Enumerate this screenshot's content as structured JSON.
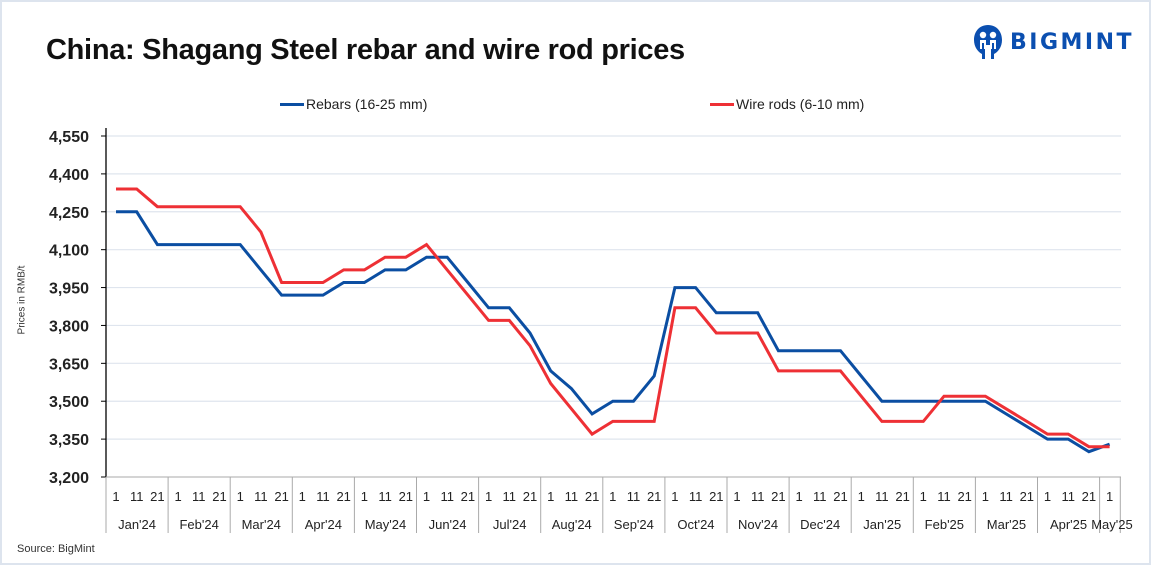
{
  "title": "China: Shagang Steel rebar and wire rod prices",
  "logo": {
    "text": "BIGMINT",
    "icon": "bigmint-logo-icon",
    "color": "#0b4fb0"
  },
  "source": "Source: BigMint",
  "chart_data": {
    "type": "line",
    "title": "China: Shagang Steel rebar and wire rod prices",
    "xlabel": "",
    "ylabel": "Prices in RMB/t",
    "ylim": [
      3200,
      4550
    ],
    "yticks": [
      3200,
      3350,
      3500,
      3650,
      3800,
      3950,
      4100,
      4250,
      4400,
      4550
    ],
    "ytick_labels": [
      "3,200",
      "3,350",
      "3,500",
      "3,650",
      "3,800",
      "3,950",
      "4,100",
      "4,250",
      "4,400",
      "4,550"
    ],
    "grid": true,
    "legend_position": "top",
    "x_day_labels": [
      "1",
      "11",
      "21",
      "1",
      "11",
      "21",
      "1",
      "11",
      "21",
      "1",
      "11",
      "21",
      "1",
      "11",
      "21",
      "1",
      "11",
      "21",
      "1",
      "11",
      "21",
      "1",
      "11",
      "21",
      "1",
      "11",
      "21",
      "1",
      "11",
      "21",
      "1",
      "11",
      "21",
      "1",
      "11",
      "21",
      "1",
      "11",
      "21",
      "1",
      "11",
      "21",
      "1",
      "11",
      "21",
      "1",
      "11",
      "21",
      "1"
    ],
    "x_month_groups": [
      {
        "label": "Jan'24",
        "count": 3
      },
      {
        "label": "Feb'24",
        "count": 3
      },
      {
        "label": "Mar'24",
        "count": 3
      },
      {
        "label": "Apr'24",
        "count": 3
      },
      {
        "label": "May'24",
        "count": 3
      },
      {
        "label": "Jun'24",
        "count": 3
      },
      {
        "label": "Jul'24",
        "count": 3
      },
      {
        "label": "Aug'24",
        "count": 3
      },
      {
        "label": "Sep'24",
        "count": 3
      },
      {
        "label": "Oct'24",
        "count": 3
      },
      {
        "label": "Nov'24",
        "count": 3
      },
      {
        "label": "Dec'24",
        "count": 3
      },
      {
        "label": "Jan'25",
        "count": 3
      },
      {
        "label": "Feb'25",
        "count": 3
      },
      {
        "label": "Mar'25",
        "count": 3
      },
      {
        "label": "Apr'25",
        "count": 3
      },
      {
        "label": "May'25",
        "count": 1
      }
    ],
    "series": [
      {
        "name": "Rebars (16-25 mm)",
        "color": "#0b4ea2",
        "values": [
          4250,
          4250,
          4120,
          4120,
          4120,
          4120,
          4120,
          4020,
          3920,
          3920,
          3920,
          3970,
          3970,
          4020,
          4020,
          4070,
          4070,
          3970,
          3870,
          3870,
          3770,
          3620,
          3550,
          3450,
          3500,
          3500,
          3600,
          3950,
          3950,
          3850,
          3850,
          3850,
          3700,
          3700,
          3700,
          3700,
          3600,
          3500,
          3500,
          3500,
          3500,
          3500,
          3500,
          3450,
          3400,
          3350,
          3350,
          3300,
          3330
        ]
      },
      {
        "name": "Wire rods (6-10 mm)",
        "color": "#ee3035",
        "values": [
          4340,
          4340,
          4270,
          4270,
          4270,
          4270,
          4270,
          4170,
          3970,
          3970,
          3970,
          4020,
          4020,
          4070,
          4070,
          4120,
          4020,
          3920,
          3820,
          3820,
          3720,
          3570,
          3470,
          3370,
          3420,
          3420,
          3420,
          3870,
          3870,
          3770,
          3770,
          3770,
          3620,
          3620,
          3620,
          3620,
          3520,
          3420,
          3420,
          3420,
          3520,
          3520,
          3520,
          3470,
          3420,
          3370,
          3370,
          3320,
          3320
        ]
      }
    ]
  }
}
